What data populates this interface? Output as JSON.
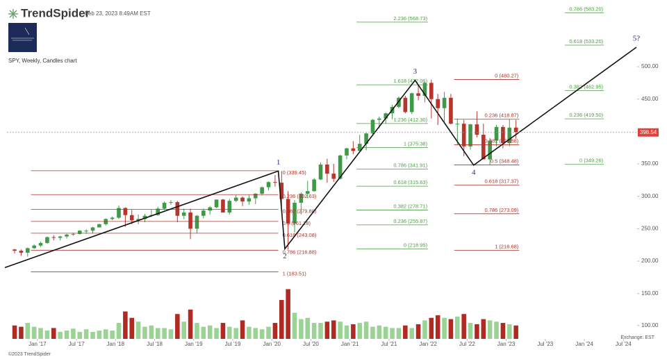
{
  "chart_data": {
    "type": "candlestick",
    "brand": "TrendSpider",
    "timestamp": "Feb 23, 2023 8:49AM EST",
    "title": "SPY, Weekly, Candles chart",
    "x": [
      "2016-09",
      "2016-10",
      "2016-11",
      "2016-12",
      "2017-01",
      "2017-02",
      "2017-03",
      "2017-04",
      "2017-05",
      "2017-06",
      "2017-07",
      "2017-08",
      "2017-09",
      "2017-10",
      "2017-11",
      "2017-12",
      "2018-01",
      "2018-02",
      "2018-03",
      "2018-04",
      "2018-05",
      "2018-06",
      "2018-07",
      "2018-08",
      "2018-09",
      "2018-10",
      "2018-11",
      "2018-12",
      "2019-01",
      "2019-02",
      "2019-03",
      "2019-04",
      "2019-05",
      "2019-06",
      "2019-07",
      "2019-08",
      "2019-09",
      "2019-10",
      "2019-11",
      "2019-12",
      "2020-01",
      "2020-02",
      "2020-03",
      "2020-04",
      "2020-05",
      "2020-06",
      "2020-07",
      "2020-08",
      "2020-09",
      "2020-10",
      "2020-11",
      "2020-12",
      "2021-01",
      "2021-02",
      "2021-03",
      "2021-04",
      "2021-05",
      "2021-06",
      "2021-07",
      "2021-08",
      "2021-09",
      "2021-10",
      "2021-11",
      "2021-12",
      "2022-01",
      "2022-02",
      "2022-03",
      "2022-04",
      "2022-05",
      "2022-06",
      "2022-07",
      "2022-08",
      "2022-09",
      "2022-10",
      "2022-11",
      "2022-12",
      "2023-01",
      "2023-02"
    ],
    "open": [
      218,
      216,
      213,
      220,
      224,
      228,
      237,
      236,
      238,
      241,
      242,
      247,
      247,
      252,
      257,
      265,
      267,
      282,
      271,
      263,
      265,
      270,
      271,
      281,
      290,
      291,
      270,
      275,
      250,
      270,
      278,
      283,
      295,
      275,
      293,
      298,
      292,
      297,
      304,
      314,
      322,
      321,
      296,
      258,
      290,
      304,
      308,
      326,
      349,
      335,
      327,
      363,
      374,
      370,
      381,
      397,
      418,
      420,
      428,
      438,
      452,
      430,
      459,
      455,
      475,
      450,
      436,
      452,
      412,
      412,
      377,
      411,
      395,
      357,
      386,
      407,
      382,
      406
    ],
    "high": [
      219,
      218,
      221,
      226,
      230,
      238,
      240,
      239,
      242,
      244,
      248,
      249,
      253,
      258,
      266,
      269,
      286,
      283,
      279,
      272,
      273,
      279,
      284,
      292,
      294,
      293,
      281,
      281,
      271,
      281,
      285,
      295,
      296,
      296,
      302,
      300,
      302,
      305,
      315,
      323,
      333,
      339,
      308,
      294,
      306,
      324,
      328,
      352,
      358,
      350,
      364,
      375,
      385,
      395,
      398,
      419,
      423,
      429,
      441,
      454,
      455,
      460,
      472,
      477,
      480,
      458,
      461,
      458,
      420,
      418,
      412,
      431,
      412,
      390,
      410,
      410,
      419,
      418
    ],
    "low": [
      212,
      208,
      207,
      219,
      222,
      227,
      232,
      232,
      235,
      239,
      241,
      242,
      243,
      252,
      255,
      263,
      265,
      253,
      257,
      257,
      260,
      268,
      270,
      279,
      287,
      260,
      265,
      234,
      243,
      266,
      272,
      282,
      275,
      272,
      291,
      285,
      287,
      288,
      301,
      309,
      315,
      285,
      218,
      244,
      272,
      297,
      307,
      325,
      321,
      322,
      326,
      357,
      365,
      370,
      371,
      396,
      405,
      412,
      419,
      436,
      428,
      427,
      448,
      445,
      420,
      410,
      415,
      411,
      380,
      362,
      372,
      391,
      357,
      349,
      377,
      374,
      377,
      389
    ],
    "close": [
      216,
      213,
      220,
      224,
      228,
      237,
      236,
      238,
      241,
      242,
      247,
      247,
      252,
      257,
      265,
      267,
      282,
      271,
      263,
      265,
      270,
      271,
      281,
      290,
      291,
      270,
      275,
      250,
      270,
      278,
      283,
      295,
      275,
      293,
      298,
      292,
      297,
      304,
      314,
      322,
      321,
      296,
      258,
      290,
      304,
      308,
      326,
      349,
      335,
      327,
      363,
      374,
      370,
      381,
      397,
      418,
      420,
      428,
      438,
      452,
      430,
      459,
      455,
      475,
      450,
      436,
      452,
      412,
      412,
      377,
      411,
      395,
      357,
      386,
      407,
      382,
      406,
      399
    ],
    "volume": [
      100,
      98,
      104,
      98,
      96,
      92,
      96,
      90,
      92,
      95,
      90,
      94,
      90,
      92,
      94,
      92,
      104,
      122,
      112,
      106,
      98,
      100,
      96,
      96,
      94,
      118,
      106,
      125,
      104,
      98,
      100,
      96,
      104,
      98,
      96,
      108,
      98,
      96,
      94,
      98,
      104,
      140,
      157,
      120,
      110,
      112,
      104,
      104,
      106,
      108,
      106,
      100,
      102,
      104,
      106,
      98,
      100,
      98,
      96,
      96,
      100,
      96,
      102,
      108,
      112,
      116,
      112,
      110,
      114,
      118,
      104,
      102,
      110,
      108,
      106,
      104,
      102,
      100
    ],
    "up_color": "#3f9a48",
    "down_color": "#b8352b",
    "volume_up_color": "#9ad394",
    "volume_down_color": "#b02a22",
    "xlim": [
      "2016-08",
      "2024-09"
    ],
    "xticks": [
      {
        "value": "2017-01",
        "label": "Jan '17"
      },
      {
        "value": "2017-07",
        "label": "Jul '17"
      },
      {
        "value": "2018-01",
        "label": "Jan '18"
      },
      {
        "value": "2018-07",
        "label": "Jul '18"
      },
      {
        "value": "2019-01",
        "label": "Jan '19"
      },
      {
        "value": "2019-07",
        "label": "Jul '19"
      },
      {
        "value": "2020-01",
        "label": "Jan '20"
      },
      {
        "value": "2020-07",
        "label": "Jul '20"
      },
      {
        "value": "2021-01",
        "label": "Jan '21"
      },
      {
        "value": "2021-07",
        "label": "Jul '21"
      },
      {
        "value": "2022-01",
        "label": "Jan '22"
      },
      {
        "value": "2022-07",
        "label": "Jul '22"
      },
      {
        "value": "2023-01",
        "label": "Jan '23"
      },
      {
        "value": "2023-07",
        "label": "Jul '23"
      },
      {
        "value": "2024-01",
        "label": "Jan '24"
      },
      {
        "value": "2024-07",
        "label": "Jul '24"
      }
    ],
    "ylim": [
      169,
      590
    ],
    "yticks": [
      {
        "value": 200,
        "label": "200.00"
      },
      {
        "value": 250,
        "label": "250.00"
      },
      {
        "value": 300,
        "label": "300.00"
      },
      {
        "value": 350,
        "label": "350.00"
      },
      {
        "value": 400,
        "label": "400.00"
      },
      {
        "value": 450,
        "label": "450.00"
      },
      {
        "value": 500,
        "label": "500.00"
      }
    ],
    "volume_ylim": [
      79,
      164
    ],
    "volume_yticks": [
      {
        "value": 100,
        "label": "100.00"
      },
      {
        "value": 150,
        "label": "150.00"
      }
    ],
    "last_price": 398.54,
    "last_price_color": "#e0403a",
    "fib_levels": [
      {
        "color": "#a8342c",
        "x": [
          "2016-12",
          "2020-02"
        ],
        "levels": [
          {
            "label": "0 (339.45)",
            "value": 339.45
          },
          {
            "label": "0.236 (302.63)",
            "value": 302.63
          },
          {
            "label": "0.382 (279.88)",
            "value": 279.88
          },
          {
            "label": "0.5 (261.28)",
            "value": 261.28
          },
          {
            "label": "0.618 (243.08)",
            "value": 243.08
          },
          {
            "label": "0.786 (216.88)",
            "value": 216.88
          },
          {
            "label": "1 (183.51)",
            "value": 183.51
          }
        ]
      },
      {
        "color": "#4c9c44",
        "x": [
          "2021-02",
          "2022-01"
        ],
        "levels": [
          {
            "label": "2.236 (568.73)",
            "value": 568.73
          },
          {
            "label": "1.618 (472.06)",
            "value": 472.06
          },
          {
            "label": "1.236 (412.30)",
            "value": 412.3
          },
          {
            "label": "1 (375.38)",
            "value": 375.38
          },
          {
            "label": "0.786 (341.91)",
            "value": 341.91
          },
          {
            "label": "0.618 (315.63)",
            "value": 315.63
          },
          {
            "label": "0.382 (278.71)",
            "value": 278.71
          },
          {
            "label": "0.236 (255.87)",
            "value": 255.87
          },
          {
            "label": "0 (218.95)",
            "value": 218.95
          }
        ]
      },
      {
        "color": "#a8342c",
        "x": [
          "2022-05",
          "2023-03"
        ],
        "levels": [
          {
            "label": "0 (480.27)",
            "value": 480.27
          },
          {
            "label": "0.236 (418.87)",
            "value": 418.87
          },
          {
            "label": "0.382 (379.58)",
            "value": 379.58
          },
          {
            "label": "0.5 (348.48)",
            "value": 348.48
          },
          {
            "label": "0.618 (317.37)",
            "value": 317.37
          },
          {
            "label": "0.786 (273.09)",
            "value": 273.09
          },
          {
            "label": "1 (216.68)",
            "value": 216.68
          }
        ]
      },
      {
        "color": "#4c9c44",
        "x": [
          "2023-10",
          "2024-04"
        ],
        "levels": [
          {
            "label": "0.786 (583.20)",
            "value": 583.2
          },
          {
            "label": "0.618 (533.20)",
            "value": 533.2
          },
          {
            "label": "0.382 (462.95)",
            "value": 462.95
          },
          {
            "label": "0.236 (419.50)",
            "value": 419.5
          },
          {
            "label": "0 (349.26)",
            "value": 349.26
          }
        ]
      }
    ],
    "waves": {
      "color": "#111111",
      "label_color": "#2a2a7a",
      "points": [
        {
          "x": "2016-08",
          "y": 190
        },
        {
          "x": "2020-02",
          "y": 339,
          "label": "1"
        },
        {
          "x": "2020-03",
          "y": 219,
          "label": "2"
        },
        {
          "x": "2021-11",
          "y": 479,
          "label": "3"
        },
        {
          "x": "2022-08",
          "y": 348,
          "label": "4"
        },
        {
          "x": "2024-09",
          "y": 530,
          "label": "5?"
        }
      ]
    },
    "exchange": "Exchange: EST",
    "copyright": "©2023 TrendSpider"
  }
}
